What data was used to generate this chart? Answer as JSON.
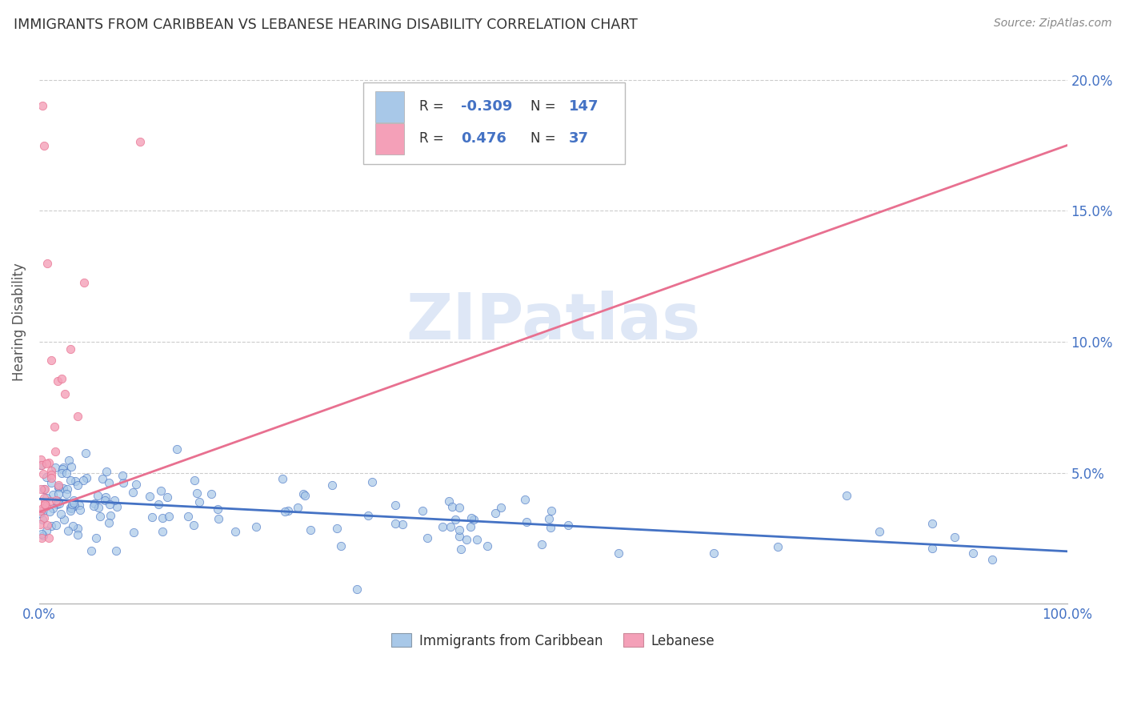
{
  "title": "IMMIGRANTS FROM CARIBBEAN VS LEBANESE HEARING DISABILITY CORRELATION CHART",
  "source": "Source: ZipAtlas.com",
  "ylabel": "Hearing Disability",
  "blue_scatter_color": "#a8c8e8",
  "pink_scatter_color": "#f4a0b8",
  "blue_line_color": "#4472c4",
  "pink_line_color": "#e87090",
  "title_color": "#333333",
  "axis_tick_color": "#4472c4",
  "watermark_color": "#c8d8f0",
  "watermark_text": "ZIPatlas",
  "legend_R1": "-0.309",
  "legend_N1": "147",
  "legend_R2": "0.476",
  "legend_N2": "37",
  "label_caribbean": "Immigrants from Caribbean",
  "label_lebanese": "Lebanese",
  "background_color": "#ffffff",
  "grid_color": "#cccccc",
  "ytick_vals": [
    0.05,
    0.1,
    0.15,
    0.2
  ],
  "ytick_labels": [
    "5.0%",
    "10.0%",
    "15.0%",
    "20.0%"
  ],
  "xlim": [
    0.0,
    1.0
  ],
  "ylim": [
    0.0,
    0.215
  ],
  "carib_line_x0": 0.0,
  "carib_line_y0": 0.04,
  "carib_line_x1": 1.0,
  "carib_line_y1": 0.02,
  "leb_line_x0": 0.0,
  "leb_line_y0": 0.035,
  "leb_line_x1": 1.0,
  "leb_line_y1": 0.175
}
